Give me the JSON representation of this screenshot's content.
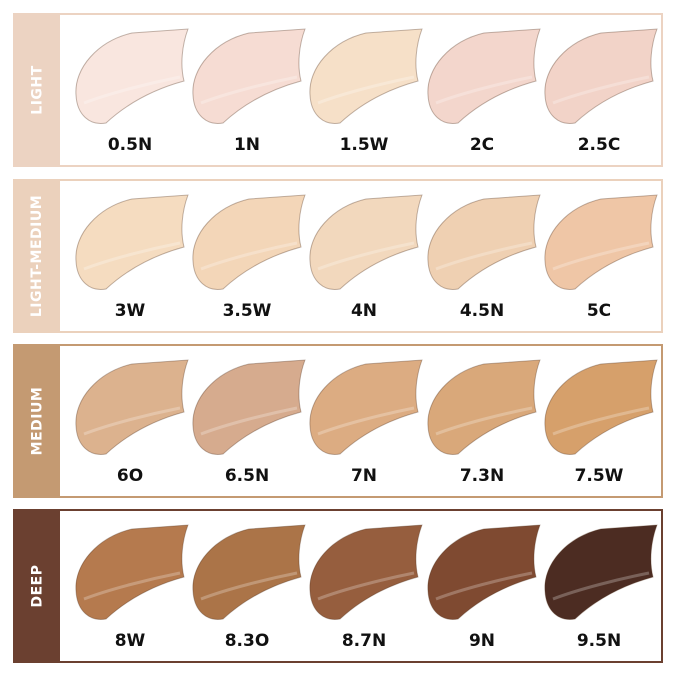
{
  "groups": [
    {
      "label": "LIGHT",
      "color": "#ecd3c2",
      "shades": [
        {
          "name": "0.5N",
          "color": "#f9e6df"
        },
        {
          "name": "1N",
          "color": "#f6dcd3"
        },
        {
          "name": "1.5W",
          "color": "#f6e0c8"
        },
        {
          "name": "2C",
          "color": "#f3d6cc"
        },
        {
          "name": "2.5C",
          "color": "#f2d3c8"
        }
      ]
    },
    {
      "label": "LIGHT-MEDIUM",
      "color": "#ebd1bc",
      "shades": [
        {
          "name": "3W",
          "color": "#f5dcc0"
        },
        {
          "name": "3.5W",
          "color": "#f3d6b8"
        },
        {
          "name": "4N",
          "color": "#f2d8bd"
        },
        {
          "name": "4.5N",
          "color": "#efd0b2"
        },
        {
          "name": "5C",
          "color": "#efc6a6"
        }
      ]
    },
    {
      "label": "MEDIUM",
      "color": "#c49a72",
      "shades": [
        {
          "name": "6O",
          "color": "#dcb28e"
        },
        {
          "name": "6.5N",
          "color": "#d6ab8e"
        },
        {
          "name": "7N",
          "color": "#dcac82"
        },
        {
          "name": "7.3N",
          "color": "#d9a87a"
        },
        {
          "name": "7.5W",
          "color": "#d6a06b"
        }
      ]
    },
    {
      "label": "DEEP",
      "color": "#6b4030",
      "shades": [
        {
          "name": "8W",
          "color": "#b57a4e"
        },
        {
          "name": "8.3O",
          "color": "#ab7448"
        },
        {
          "name": "8.7N",
          "color": "#965e3e"
        },
        {
          "name": "9N",
          "color": "#7f4a31"
        },
        {
          "name": "9.5N",
          "color": "#4c2c22"
        }
      ]
    }
  ]
}
